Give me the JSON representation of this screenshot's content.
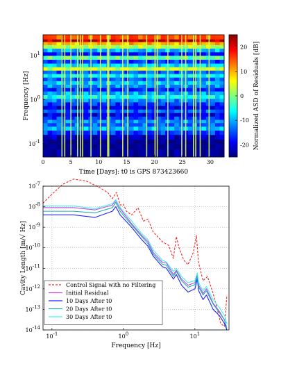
{
  "chart_data": [
    {
      "type": "heatmap",
      "xlabel": "Time [Days]: t0 is GPS 873423660",
      "ylabel": "Frequency [Hz]",
      "x_ticks": [
        0,
        5,
        10,
        15,
        20,
        25,
        30
      ],
      "xlim": [
        0,
        32.5
      ],
      "y_scale": "log",
      "y_ticks": [
        {
          "value": 10,
          "base": "10",
          "exp": "1"
        },
        {
          "value": 1,
          "base": "10",
          "exp": "0"
        },
        {
          "value": 0.1,
          "base": "10",
          "exp": "-1"
        }
      ],
      "ylim": [
        0.05,
        30
      ],
      "colorbar": {
        "label": "Normalized ASD of Residuals [dB]",
        "ticks": [
          20,
          10,
          0,
          -10,
          -20
        ],
        "range": [
          -25,
          25
        ]
      },
      "bands": [
        {
          "f": 25,
          "db": 15
        },
        {
          "f": 22,
          "db": 22
        },
        {
          "f": 19,
          "db": 10
        },
        {
          "f": 16,
          "db": 2
        },
        {
          "f": 13,
          "db": -10
        },
        {
          "f": 11,
          "db": -18
        },
        {
          "f": 9,
          "db": -2
        },
        {
          "f": 7.3,
          "db": -16
        },
        {
          "f": 6,
          "db": -8
        },
        {
          "f": 5,
          "db": 4
        },
        {
          "f": 4.2,
          "db": -14
        },
        {
          "f": 3.5,
          "db": -6
        },
        {
          "f": 2.9,
          "db": -14
        },
        {
          "f": 2.4,
          "db": -9
        },
        {
          "f": 2,
          "db": -12
        },
        {
          "f": 1.7,
          "db": -17
        },
        {
          "f": 1.4,
          "db": -11
        },
        {
          "f": 1.15,
          "db": -6
        },
        {
          "f": 0.95,
          "db": -12
        },
        {
          "f": 0.8,
          "db": -16
        },
        {
          "f": 0.65,
          "db": -20
        },
        {
          "f": 0.55,
          "db": -14
        },
        {
          "f": 0.45,
          "db": -20
        },
        {
          "f": 0.38,
          "db": -16
        },
        {
          "f": 0.32,
          "db": -12
        },
        {
          "f": 0.27,
          "db": -14
        },
        {
          "f": 0.22,
          "db": -10
        },
        {
          "f": 0.18,
          "db": -16
        },
        {
          "f": 0.14,
          "db": -22
        },
        {
          "f": 0.11,
          "db": -25
        },
        {
          "f": 0.085,
          "db": -25
        },
        {
          "f": 0.065,
          "db": -24
        }
      ],
      "glitch_days": [
        3.4,
        3.9,
        5.0,
        6.2,
        6.7,
        7.1,
        8.6,
        10.3,
        11.6,
        11.8,
        14.3,
        15.2,
        18.6,
        20.1,
        20.5,
        22.4,
        24.9,
        25.6,
        27.0,
        27.4,
        28.2,
        29.8
      ]
    },
    {
      "type": "line",
      "xlabel": "Frequency [Hz]",
      "ylabel": "Cavity Length [m/√ Hz]",
      "x_scale": "log",
      "y_scale": "log",
      "xlim": [
        0.075,
        30
      ],
      "ylim": [
        1e-14,
        1e-07
      ],
      "grid": true,
      "legend_position": "bottom-left",
      "x_ticks": [
        {
          "value": 0.1,
          "base": "10",
          "exp": "-1"
        },
        {
          "value": 1,
          "base": "10",
          "exp": "0"
        },
        {
          "value": 10,
          "base": "10",
          "exp": "1"
        }
      ],
      "y_ticks": [
        {
          "value": 1e-07,
          "base": "10",
          "exp": "-7"
        },
        {
          "value": 1e-08,
          "base": "10",
          "exp": "-8"
        },
        {
          "value": 1e-09,
          "base": "10",
          "exp": "-9"
        },
        {
          "value": 1e-10,
          "base": "10",
          "exp": "-10"
        },
        {
          "value": 1e-11,
          "base": "10",
          "exp": "-11"
        },
        {
          "value": 1e-12,
          "base": "10",
          "exp": "-12"
        },
        {
          "value": 1e-13,
          "base": "10",
          "exp": "-13"
        },
        {
          "value": 1e-14,
          "base": "10",
          "exp": "-14"
        }
      ],
      "series": [
        {
          "name": "Control Signal with no Filtering",
          "color": "#ff2020",
          "dash": true,
          "points": [
            [
              0.075,
              1.5e-08
            ],
            [
              0.1,
              4e-08
            ],
            [
              0.14,
              1.2e-07
            ],
            [
              0.2,
              2.2e-07
            ],
            [
              0.3,
              1.8e-07
            ],
            [
              0.45,
              9e-08
            ],
            [
              0.6,
              5e-08
            ],
            [
              0.7,
              2.5e-08
            ],
            [
              0.8,
              5e-08
            ],
            [
              0.9,
              1.2e-08
            ],
            [
              1.0,
              1.3e-08
            ],
            [
              1.1,
              6e-09
            ],
            [
              1.3,
              4e-09
            ],
            [
              1.6,
              9e-09
            ],
            [
              1.9,
              2e-09
            ],
            [
              2.2,
              2.5e-09
            ],
            [
              2.6,
              6e-10
            ],
            [
              3.5,
              2e-10
            ],
            [
              4.3,
              1.3e-10
            ],
            [
              5,
              3e-11
            ],
            [
              5.5,
              3.5e-10
            ],
            [
              6,
              1e-10
            ],
            [
              7,
              2.5e-11
            ],
            [
              8,
              1.5e-11
            ],
            [
              9.5,
              6e-11
            ],
            [
              10.5,
              4e-10
            ],
            [
              11.2,
              2e-11
            ],
            [
              13,
              2.5e-12
            ],
            [
              15,
              4e-12
            ],
            [
              18,
              6e-13
            ],
            [
              20,
              1.5e-13
            ],
            [
              23,
              2e-14
            ],
            [
              26,
              1.5e-14
            ],
            [
              28,
              5e-13
            ]
          ]
        },
        {
          "name": "Initial Residual",
          "color": "#c040e0",
          "dash": false,
          "points": [
            [
              0.075,
              9e-09
            ],
            [
              0.2,
              9e-09
            ],
            [
              0.4,
              7e-09
            ],
            [
              0.7,
              1.2e-08
            ],
            [
              0.78,
              2e-08
            ],
            [
              0.9,
              8e-09
            ],
            [
              1.3,
              1.5e-09
            ],
            [
              1.8,
              4e-10
            ],
            [
              2.2,
              2e-10
            ],
            [
              2.6,
              6e-11
            ],
            [
              3.5,
              2e-11
            ],
            [
              4,
              1.8e-11
            ],
            [
              5,
              5e-12
            ],
            [
              5.5,
              8e-12
            ],
            [
              6.5,
              3e-12
            ],
            [
              8,
              1.5e-12
            ],
            [
              10,
              2e-12
            ],
            [
              10.8,
              5e-12
            ],
            [
              11.3,
              1.5e-12
            ],
            [
              13,
              6e-13
            ],
            [
              14.5,
              1e-12
            ],
            [
              18,
              2e-13
            ],
            [
              22,
              8e-14
            ],
            [
              26,
              3e-14
            ],
            [
              28,
              1e-14
            ]
          ]
        },
        {
          "name": "10 Days After t0",
          "color": "#2020ff",
          "dash": false,
          "points": [
            [
              0.075,
              4e-09
            ],
            [
              0.2,
              4e-09
            ],
            [
              0.4,
              3e-09
            ],
            [
              0.7,
              6e-09
            ],
            [
              0.78,
              1e-08
            ],
            [
              0.9,
              4e-09
            ],
            [
              1.3,
              1e-09
            ],
            [
              1.8,
              2.5e-10
            ],
            [
              2.2,
              1.2e-10
            ],
            [
              2.6,
              4e-11
            ],
            [
              3.5,
              1.2e-11
            ],
            [
              4,
              1e-11
            ],
            [
              5,
              3e-12
            ],
            [
              5.5,
              5e-12
            ],
            [
              6.5,
              1.5e-12
            ],
            [
              8,
              7e-13
            ],
            [
              10,
              1e-12
            ],
            [
              10.8,
              3e-12
            ],
            [
              11.3,
              8e-13
            ],
            [
              13,
              3e-13
            ],
            [
              14.5,
              5e-13
            ],
            [
              18,
              1e-13
            ],
            [
              22,
              5e-14
            ],
            [
              26,
              2e-14
            ],
            [
              28,
              1e-14
            ]
          ]
        },
        {
          "name": "20 Days After t0",
          "color": "#20b0b0",
          "dash": false,
          "points": [
            [
              0.075,
              6e-09
            ],
            [
              0.2,
              6e-09
            ],
            [
              0.4,
              5e-09
            ],
            [
              0.7,
              9e-09
            ],
            [
              0.78,
              1.6e-08
            ],
            [
              0.9,
              6e-09
            ],
            [
              1.3,
              1.3e-09
            ],
            [
              1.8,
              3.5e-10
            ],
            [
              2.2,
              1.6e-10
            ],
            [
              2.6,
              5e-11
            ],
            [
              3.5,
              1.6e-11
            ],
            [
              4,
              1.4e-11
            ],
            [
              5,
              4e-12
            ],
            [
              5.5,
              7e-12
            ],
            [
              6.5,
              2.5e-12
            ],
            [
              8,
              1.2e-12
            ],
            [
              10,
              1.6e-12
            ],
            [
              10.8,
              4e-12
            ],
            [
              11.3,
              1.2e-12
            ],
            [
              13,
              5e-13
            ],
            [
              14.5,
              8e-13
            ],
            [
              18,
              1.8e-13
            ],
            [
              22,
              7e-14
            ],
            [
              26,
              3e-14
            ],
            [
              28,
              1.2e-14
            ]
          ]
        },
        {
          "name": "30 Days After t0",
          "color": "#40f0f0",
          "dash": false,
          "points": [
            [
              0.075,
              1.1e-08
            ],
            [
              0.2,
              1.1e-08
            ],
            [
              0.4,
              8e-09
            ],
            [
              0.7,
              1.4e-08
            ],
            [
              0.78,
              2.2e-08
            ],
            [
              0.9,
              9e-09
            ],
            [
              1.3,
              2e-09
            ],
            [
              1.8,
              5e-10
            ],
            [
              2.2,
              2.5e-10
            ],
            [
              2.6,
              8e-11
            ],
            [
              3.5,
              2.5e-11
            ],
            [
              4,
              2e-11
            ],
            [
              5,
              7e-12
            ],
            [
              5.5,
              1e-11
            ],
            [
              6.5,
              4e-12
            ],
            [
              8,
              2e-12
            ],
            [
              10,
              2.5e-12
            ],
            [
              10.8,
              6e-12
            ],
            [
              11.3,
              2e-12
            ],
            [
              13,
              8e-13
            ],
            [
              14.5,
              1.3e-12
            ],
            [
              18,
              3e-13
            ],
            [
              22,
              1.2e-13
            ],
            [
              26,
              5e-14
            ],
            [
              28,
              2e-14
            ]
          ]
        }
      ]
    }
  ]
}
